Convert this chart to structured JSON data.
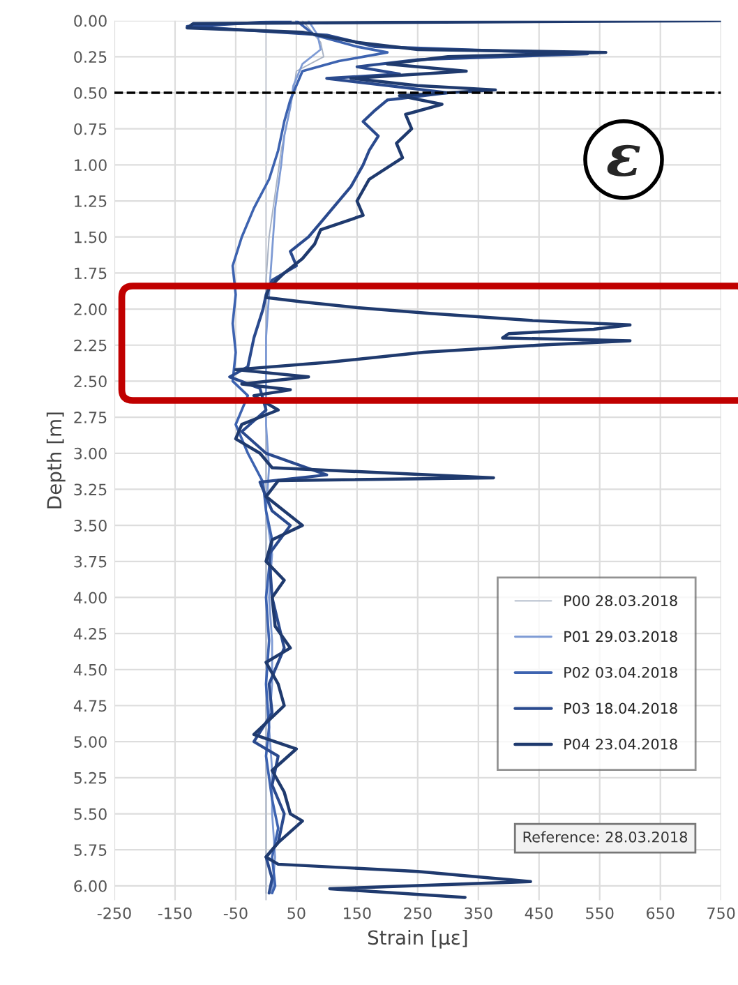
{
  "chart_data": {
    "type": "line",
    "xlabel": "Strain [µε]",
    "ylabel": "Depth [m]",
    "xlim": [
      -250,
      750
    ],
    "xticks": [
      -250,
      -150,
      -50,
      50,
      150,
      250,
      350,
      450,
      550,
      650,
      750
    ],
    "ylim": [
      6.1,
      0
    ],
    "yticks": [
      {
        "value": 0,
        "label": "0.00"
      },
      {
        "value": 0.25,
        "label": "0.25"
      },
      {
        "value": 0.5,
        "label": "0.50"
      },
      {
        "value": 0.75,
        "label": "0.75"
      },
      {
        "value": 1,
        "label": "1.00"
      },
      {
        "value": 1.25,
        "label": "1.25"
      },
      {
        "value": 1.5,
        "label": "1.50"
      },
      {
        "value": 1.75,
        "label": "1.75"
      },
      {
        "value": 2,
        "label": "2.00"
      },
      {
        "value": 2.25,
        "label": "2.25"
      },
      {
        "value": 2.5,
        "label": "2.50"
      },
      {
        "value": 2.75,
        "label": "2.75"
      },
      {
        "value": 3,
        "label": "3.00"
      },
      {
        "value": 3.25,
        "label": "3.25"
      },
      {
        "value": 3.5,
        "label": "3.50"
      },
      {
        "value": 3.75,
        "label": "3.75"
      },
      {
        "value": 4,
        "label": "4.00"
      },
      {
        "value": 4.25,
        "label": "4.25"
      },
      {
        "value": 4.5,
        "label": "4.50"
      },
      {
        "value": 4.75,
        "label": "4.75"
      },
      {
        "value": 5,
        "label": "5.00"
      },
      {
        "value": 5.25,
        "label": "5.25"
      },
      {
        "value": 5.5,
        "label": "5.50"
      },
      {
        "value": 5.75,
        "label": "5.75"
      },
      {
        "value": 6,
        "label": "6.00"
      }
    ],
    "grid": true,
    "legend": "bottom right",
    "marker": "none",
    "line_style": "solid",
    "ref_lines": [
      {
        "axis": "y",
        "value": 0.5,
        "label": null,
        "color": "#000000",
        "line_style": "dashed"
      },
      {
        "axis": "x",
        "value": 0,
        "label": null,
        "color": "#c8ccd4",
        "line_style": "solid"
      }
    ],
    "annotations": [
      "ε",
      "Reference: 28.03.2018"
    ],
    "series": [
      {
        "name": "P00 28.03.2018",
        "color": "#a9b3c4",
        "x": [
          60,
          90,
          95,
          50,
          45,
          35,
          25,
          15,
          5,
          0,
          0,
          0,
          0,
          0,
          0,
          0,
          0,
          0,
          0,
          0,
          0,
          0,
          0,
          0
        ],
        "values": [
          0.0,
          0.15,
          0.25,
          0.35,
          0.5,
          0.7,
          0.9,
          1.2,
          1.5,
          1.8,
          2.1,
          2.4,
          2.7,
          3.0,
          3.3,
          3.6,
          3.9,
          4.2,
          4.5,
          4.8,
          5.1,
          5.4,
          5.7,
          6.05
        ]
      },
      {
        "name": "P01 29.03.2018",
        "color": "#7d9ad4",
        "x": [
          70,
          85,
          90,
          60,
          45,
          40,
          30,
          25,
          15,
          10,
          5,
          0,
          0,
          0,
          5,
          0,
          10,
          5,
          10,
          10,
          5,
          10,
          10,
          15,
          10
        ],
        "values": [
          0.0,
          0.1,
          0.2,
          0.3,
          0.45,
          0.6,
          0.8,
          1.0,
          1.3,
          1.6,
          1.9,
          2.2,
          2.5,
          2.8,
          3.1,
          3.4,
          3.7,
          4.0,
          4.3,
          4.6,
          4.9,
          5.2,
          5.5,
          5.8,
          6.05
        ]
      },
      {
        "name": "P02 03.04.2018",
        "color": "#3d63b0",
        "x": [
          50,
          80,
          150,
          200,
          120,
          60,
          50,
          40,
          30,
          20,
          5,
          -20,
          -40,
          -55,
          -50,
          -55,
          -50,
          -55,
          -30,
          -50,
          -30,
          -5,
          0,
          10,
          5,
          0,
          5,
          0,
          5,
          0,
          10,
          20,
          10,
          15,
          10
        ],
        "values": [
          0.0,
          0.1,
          0.18,
          0.22,
          0.28,
          0.35,
          0.45,
          0.55,
          0.7,
          0.9,
          1.1,
          1.3,
          1.5,
          1.7,
          1.9,
          2.1,
          2.3,
          2.5,
          2.6,
          2.8,
          3.0,
          3.2,
          3.4,
          3.6,
          3.8,
          4.0,
          4.3,
          4.6,
          4.9,
          5.1,
          5.4,
          5.6,
          5.8,
          6.0,
          6.05
        ]
      },
      {
        "name": "P03 18.04.2018",
        "color": "#2a4a8e",
        "x": [
          40,
          -130,
          100,
          180,
          530,
          250,
          150,
          220,
          100,
          200,
          300,
          200,
          180,
          160,
          185,
          170,
          160,
          140,
          110,
          90,
          70,
          40,
          50,
          10,
          0,
          -5,
          -20,
          -30,
          -60,
          -10,
          0,
          -40,
          0,
          100,
          -10,
          10,
          40,
          5,
          10,
          30,
          5,
          10,
          -20,
          20,
          10,
          30,
          20,
          0,
          10,
          5
        ],
        "values": [
          0.0,
          0.04,
          0.1,
          0.18,
          0.23,
          0.27,
          0.32,
          0.37,
          0.4,
          0.45,
          0.5,
          0.55,
          0.62,
          0.7,
          0.8,
          0.9,
          1.0,
          1.15,
          1.3,
          1.4,
          1.5,
          1.6,
          1.7,
          1.8,
          1.9,
          2.0,
          2.2,
          2.4,
          2.47,
          2.55,
          2.7,
          2.85,
          3.0,
          3.15,
          3.2,
          3.4,
          3.5,
          3.7,
          4.0,
          4.35,
          4.6,
          4.8,
          5.0,
          5.1,
          5.3,
          5.5,
          5.7,
          5.8,
          5.95,
          6.05
        ]
      },
      {
        "name": "P04 23.04.2018",
        "color": "#1f3a6e",
        "x": [
          750,
          -120,
          -130,
          60,
          150,
          250,
          560,
          300,
          200,
          330,
          140,
          250,
          378,
          220,
          290,
          230,
          240,
          215,
          225,
          170,
          150,
          160,
          90,
          80,
          60,
          30,
          5,
          0,
          60,
          150,
          270,
          440,
          600,
          540,
          400,
          390,
          600,
          450,
          260,
          100,
          -50,
          70,
          -40,
          40,
          -20,
          20,
          -40,
          -50,
          -10,
          10,
          375,
          20,
          0,
          30,
          60,
          10,
          0,
          30,
          10,
          15,
          40,
          0,
          20,
          30,
          -20,
          50,
          10,
          30,
          40,
          60,
          20,
          0,
          20,
          250,
          436,
          105,
          328
        ],
        "values": [
          0.0,
          0.02,
          0.05,
          0.08,
          0.15,
          0.2,
          0.22,
          0.25,
          0.3,
          0.35,
          0.4,
          0.45,
          0.48,
          0.52,
          0.58,
          0.65,
          0.75,
          0.85,
          0.95,
          1.1,
          1.25,
          1.35,
          1.45,
          1.55,
          1.65,
          1.75,
          1.85,
          1.92,
          1.95,
          1.99,
          2.03,
          2.08,
          2.11,
          2.14,
          2.17,
          2.2,
          2.22,
          2.25,
          2.3,
          2.37,
          2.42,
          2.47,
          2.52,
          2.56,
          2.6,
          2.7,
          2.8,
          2.9,
          3.0,
          3.1,
          3.17,
          3.19,
          3.3,
          3.4,
          3.5,
          3.6,
          3.75,
          3.88,
          4.0,
          4.2,
          4.35,
          4.45,
          4.6,
          4.75,
          4.95,
          5.05,
          5.2,
          5.35,
          5.5,
          5.55,
          5.7,
          5.8,
          5.85,
          5.9,
          5.97,
          6.02,
          6.08
        ]
      }
    ]
  }
}
